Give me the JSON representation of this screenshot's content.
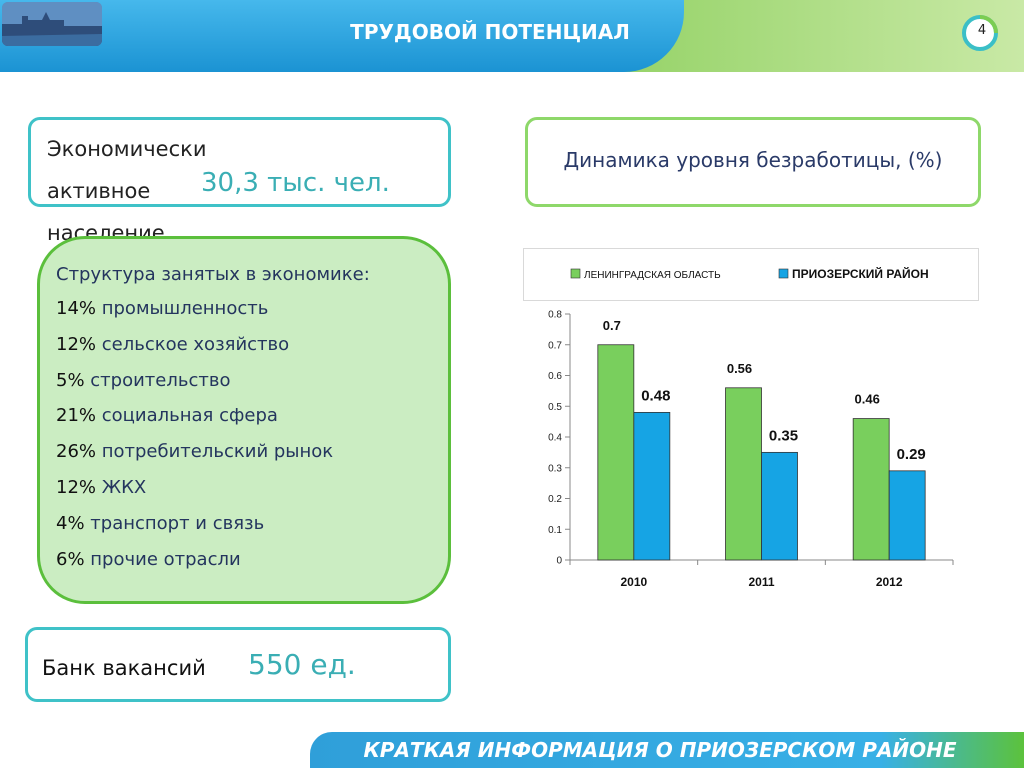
{
  "header": {
    "title": "ТРУДОВОЙ ПОТЕНЦИАЛ",
    "page_number": "4"
  },
  "economically_active": {
    "label": "Экономически активное\nнаселение",
    "value": "30,3 тыс. чел."
  },
  "dynamics": {
    "title": "Динамика уровня безработицы, (%)"
  },
  "structure": {
    "title": "Структура занятых в экономике:",
    "items": [
      {
        "pct": "14%",
        "text": " промышленность"
      },
      {
        "pct": "12%",
        "text": " сельское хозяйство"
      },
      {
        "pct": "5%",
        "text": " строительство"
      },
      {
        "pct": "21%",
        "text": " социальная сфера"
      },
      {
        "pct": "26%",
        "text": "  потребительский рынок"
      },
      {
        "pct": "12%",
        "text": " ЖКХ"
      },
      {
        "pct": "4%",
        "text": " транспорт и связь"
      },
      {
        "pct": "6%",
        "text": " прочие отрасли"
      }
    ]
  },
  "vacancies": {
    "label": "Банк вакансий",
    "value": "550 ед."
  },
  "footer": {
    "text": "КРАТКАЯ ИНФОРМАЦИЯ О ПРИОЗЕРСКОМ РАЙОНЕ"
  },
  "colors": {
    "green_series": "#79cf5d",
    "blue_series": "#16a4e4",
    "teal_value": "#3aaeb4",
    "navy_text": "#24355e"
  },
  "chart_data": {
    "type": "bar",
    "categories": [
      "2010",
      "2011",
      "2012"
    ],
    "series": [
      {
        "name": "ЛЕНИНГРАДСКАЯ ОБЛАСТЬ",
        "values": [
          0.7,
          0.56,
          0.46
        ],
        "color": "#79cf5d"
      },
      {
        "name": "ПРИОЗЕРСКИЙ РАЙОН",
        "values": [
          0.48,
          0.35,
          0.29
        ],
        "color": "#16a4e4"
      }
    ],
    "data_labels": [
      [
        "0.7",
        "0.56",
        "0.46"
      ],
      [
        "0.48",
        "0.35",
        "0.29"
      ]
    ],
    "y_ticks": [
      "0",
      "0.1",
      "0.2",
      "0.3",
      "0.4",
      "0.5",
      "0.6",
      "0.7",
      "0.8"
    ],
    "ylim": [
      0,
      0.8
    ],
    "legend": "top",
    "grid": false
  }
}
